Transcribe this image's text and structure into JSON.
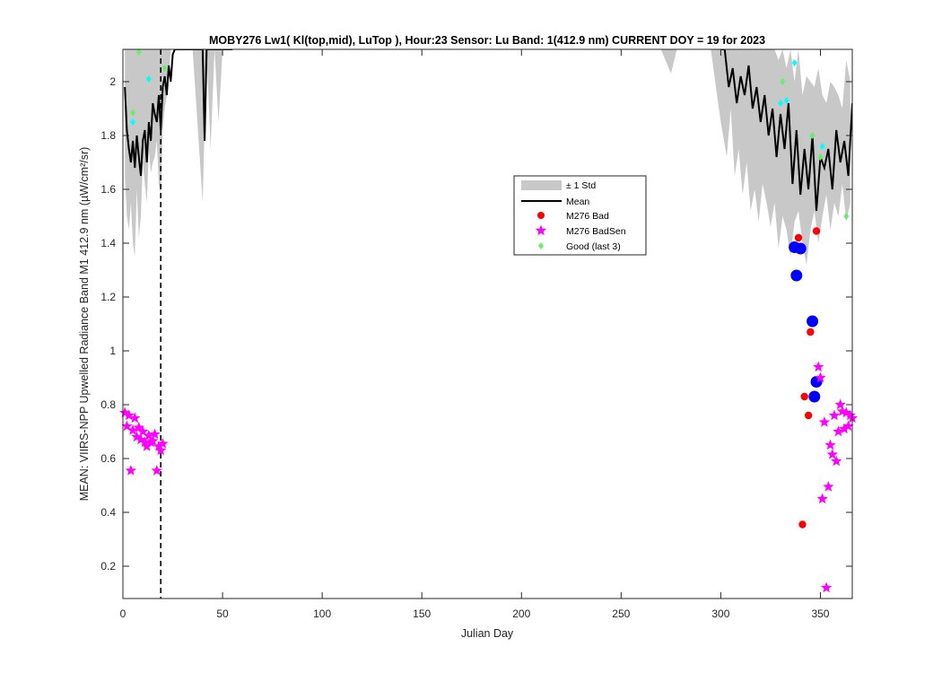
{
  "chart_data": {
    "type": "line",
    "title": "MOBY276   Lw1( Kl(top,mid), LuTop ),   Hour:23 Sensor: Lu Band: 1(412.9 nm)   CURRENT DOY = 19 for 2023",
    "xlabel": "Julian Day",
    "ylabel": "MEAN: VIIRS-NPP Upwelled Radiance Band M1 412.9 nm (µW/cm²/sr)",
    "xlim": [
      0,
      366
    ],
    "ylim": [
      0.08,
      2.12
    ],
    "xticks": [
      0,
      50,
      100,
      150,
      200,
      250,
      300,
      350
    ],
    "yticks": [
      0.2,
      0.4,
      0.6,
      0.8,
      1,
      1.2,
      1.4,
      1.6,
      1.8,
      2
    ],
    "current_doy": 19,
    "legend_position": "center-right",
    "legend": [
      "± 1 Std",
      "Mean",
      "M276 Bad",
      "M276 BadSen",
      "Good (last 3)"
    ],
    "colors": {
      "std_band": "#c8c8c8",
      "mean": "#000000",
      "bad": "#ff0000",
      "badsen": "#ff00ff",
      "good": "#66ee66",
      "good_alt": "#00ffff",
      "blue": "#0000ff"
    },
    "std_band": {
      "x": [
        1,
        2,
        3,
        4,
        5,
        6,
        7,
        8,
        9,
        10,
        11,
        12,
        13,
        14,
        15,
        16,
        17,
        18,
        19,
        20,
        21,
        22,
        23,
        24,
        25,
        26,
        27,
        28,
        29,
        30,
        35,
        40,
        42,
        44,
        46,
        48,
        50,
        55,
        60,
        65,
        68,
        70,
        75,
        80,
        90,
        100,
        110,
        115,
        120,
        150,
        200,
        250,
        270,
        275,
        278,
        280,
        285,
        290,
        292,
        295,
        300,
        303,
        305,
        307,
        309,
        311,
        313,
        315,
        317,
        319,
        321,
        323,
        325,
        327,
        329,
        331,
        333,
        335,
        337,
        339,
        341,
        343,
        345,
        347,
        349,
        351,
        353,
        355,
        357,
        359,
        361,
        363,
        365
      ],
      "upper": [
        2.12,
        2.12,
        2.12,
        2.12,
        2.12,
        2.12,
        2.12,
        2.12,
        2.12,
        2.12,
        2.12,
        2.12,
        2.12,
        2.12,
        2.12,
        2.12,
        2.12,
        2.12,
        2.12,
        2.12,
        2.12,
        2.12,
        2.12,
        2.12,
        2.12,
        2.12,
        2.12,
        2.12,
        2.12,
        2.12,
        2.12,
        2.12,
        2.12,
        2.12,
        2.12,
        2.12,
        2.12,
        2.12,
        2.12,
        2.12,
        2.12,
        2.12,
        2.12,
        2.12,
        2.12,
        2.12,
        2.12,
        2.12,
        2.12,
        2.12,
        2.12,
        2.12,
        2.12,
        2.12,
        2.12,
        2.12,
        2.12,
        2.12,
        2.12,
        2.12,
        2.12,
        2.12,
        2.12,
        2.12,
        2.12,
        2.12,
        2.12,
        2.12,
        2.12,
        2.12,
        2.12,
        2.12,
        2.12,
        2.12,
        2.08,
        2.12,
        2.05,
        2.12,
        2.0,
        2.12,
        1.95,
        2.02,
        2.0,
        1.98,
        2.05,
        1.95,
        1.92,
        2.0,
        1.98,
        1.95,
        1.9,
        2.08,
        2.0
      ],
      "lower": [
        1.65,
        1.5,
        1.45,
        1.55,
        1.4,
        1.35,
        1.6,
        1.42,
        1.5,
        1.7,
        1.62,
        1.55,
        1.75,
        1.66,
        1.7,
        1.72,
        1.78,
        1.62,
        1.58,
        1.82,
        1.9,
        1.95,
        2.02,
        2.12,
        2.12,
        2.12,
        2.12,
        2.12,
        2.12,
        2.12,
        2.12,
        1.55,
        2.12,
        1.75,
        2.12,
        1.85,
        2.12,
        2.12,
        2.12,
        2.12,
        2.12,
        2.12,
        2.12,
        2.12,
        2.12,
        2.12,
        2.12,
        2.12,
        2.12,
        2.12,
        2.12,
        2.12,
        2.12,
        2.03,
        2.12,
        2.12,
        2.12,
        2.12,
        2.12,
        2.12,
        1.85,
        1.72,
        1.9,
        1.65,
        1.75,
        1.58,
        1.7,
        1.52,
        1.6,
        1.48,
        1.62,
        1.55,
        1.46,
        1.55,
        1.38,
        1.5,
        1.45,
        1.35,
        1.48,
        1.52,
        1.4,
        1.32,
        1.45,
        1.52,
        1.4,
        1.5,
        1.58,
        1.45,
        1.55,
        1.5,
        1.62,
        1.48,
        1.55
      ]
    },
    "mean": {
      "x": [
        1,
        2,
        3,
        4,
        5,
        6,
        7,
        8,
        9,
        10,
        11,
        12,
        13,
        14,
        15,
        16,
        17,
        18,
        19,
        20,
        21,
        22,
        23,
        24,
        25,
        26,
        27,
        28,
        29,
        30,
        33,
        36,
        40,
        41,
        42,
        45,
        48,
        50,
        55,
        300,
        302,
        304,
        306,
        308,
        310,
        312,
        314,
        316,
        318,
        320,
        322,
        324,
        326,
        328,
        330,
        332,
        334,
        336,
        338,
        340,
        342,
        344,
        346,
        348,
        350,
        352,
        354,
        356,
        358,
        360,
        362,
        364,
        366
      ],
      "values": [
        1.98,
        1.82,
        1.75,
        1.7,
        1.78,
        1.68,
        1.8,
        1.72,
        1.65,
        1.78,
        1.82,
        1.7,
        1.85,
        1.78,
        1.92,
        1.88,
        1.85,
        1.95,
        1.82,
        1.98,
        2.02,
        1.95,
        2.06,
        2.0,
        2.1,
        2.12,
        2.12,
        2.12,
        2.12,
        2.12,
        2.12,
        2.12,
        2.12,
        1.78,
        2.12,
        2.12,
        2.12,
        2.12,
        2.12,
        2.12,
        2.12,
        1.98,
        2.05,
        1.92,
        2.02,
        1.95,
        2.06,
        1.9,
        1.98,
        1.85,
        1.95,
        1.8,
        1.9,
        1.72,
        1.88,
        1.75,
        1.92,
        1.62,
        1.82,
        1.58,
        1.75,
        1.6,
        1.8,
        1.52,
        1.72,
        1.68,
        1.75,
        1.6,
        1.82,
        1.7,
        1.78,
        1.65,
        1.92
      ]
    },
    "bad": {
      "x": [
        339,
        341,
        342,
        344,
        345,
        348
      ],
      "values": [
        1.42,
        0.355,
        0.83,
        0.76,
        1.07,
        1.445
      ]
    },
    "badsen": {
      "x": [
        1,
        2,
        3,
        4,
        5,
        6,
        7,
        8,
        9,
        10,
        11,
        12,
        13,
        14,
        15,
        16,
        17,
        18,
        19,
        20,
        349,
        350,
        351,
        352,
        354,
        355,
        356,
        357,
        358,
        359,
        360,
        361,
        362,
        363,
        364,
        365,
        366,
        353
      ],
      "values": [
        0.77,
        0.72,
        0.76,
        0.555,
        0.705,
        0.75,
        0.68,
        0.715,
        0.67,
        0.7,
        0.66,
        0.645,
        0.685,
        0.66,
        0.665,
        0.69,
        0.555,
        0.645,
        0.63,
        0.655,
        0.94,
        0.9,
        0.45,
        0.735,
        0.495,
        0.65,
        0.615,
        0.76,
        0.59,
        0.7,
        0.8,
        0.775,
        0.71,
        0.77,
        0.72,
        0.76,
        0.75,
        0.12
      ]
    },
    "good": {
      "x": [
        5,
        8,
        21,
        331,
        346,
        350,
        363
      ],
      "values": [
        1.885,
        2.11,
        2.05,
        2.0,
        1.8,
        1.72,
        1.5
      ]
    },
    "good_alt": {
      "x": [
        5,
        13,
        330,
        333,
        337,
        351
      ],
      "values": [
        1.85,
        2.01,
        1.92,
        1.93,
        2.07,
        1.76
      ]
    },
    "blue": {
      "x": [
        337,
        338,
        340,
        346,
        347,
        348
      ],
      "values": [
        1.385,
        1.28,
        1.38,
        1.11,
        0.83,
        0.885
      ]
    }
  }
}
